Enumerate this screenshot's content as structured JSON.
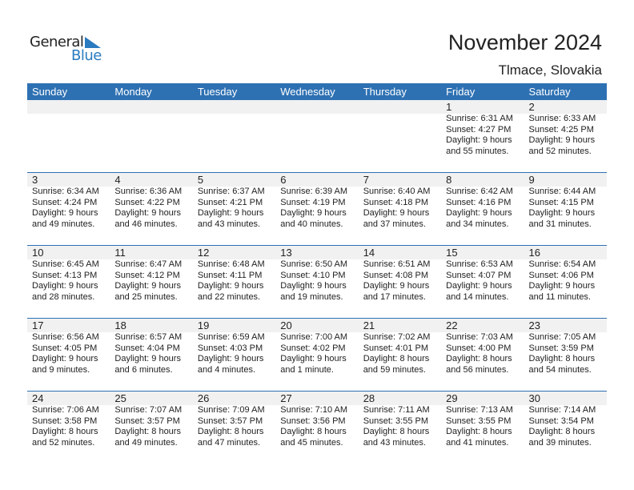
{
  "logo": {
    "text1": "General",
    "text2": "Blue"
  },
  "title": "November 2024",
  "location": "Tlmace, Slovakia",
  "colors": {
    "header": "#2e71b3",
    "band": "#f1f1f1",
    "logo_blue": "#2a7bc0"
  },
  "days": [
    "Sunday",
    "Monday",
    "Tuesday",
    "Wednesday",
    "Thursday",
    "Friday",
    "Saturday"
  ],
  "weeks": [
    [
      null,
      null,
      null,
      null,
      null,
      {
        "day": "1",
        "sunrise": "Sunrise: 6:31 AM",
        "sunset": "Sunset: 4:27 PM",
        "daylight1": "Daylight: 9 hours",
        "daylight2": "and 55 minutes."
      },
      {
        "day": "2",
        "sunrise": "Sunrise: 6:33 AM",
        "sunset": "Sunset: 4:25 PM",
        "daylight1": "Daylight: 9 hours",
        "daylight2": "and 52 minutes."
      }
    ],
    [
      {
        "day": "3",
        "sunrise": "Sunrise: 6:34 AM",
        "sunset": "Sunset: 4:24 PM",
        "daylight1": "Daylight: 9 hours",
        "daylight2": "and 49 minutes."
      },
      {
        "day": "4",
        "sunrise": "Sunrise: 6:36 AM",
        "sunset": "Sunset: 4:22 PM",
        "daylight1": "Daylight: 9 hours",
        "daylight2": "and 46 minutes."
      },
      {
        "day": "5",
        "sunrise": "Sunrise: 6:37 AM",
        "sunset": "Sunset: 4:21 PM",
        "daylight1": "Daylight: 9 hours",
        "daylight2": "and 43 minutes."
      },
      {
        "day": "6",
        "sunrise": "Sunrise: 6:39 AM",
        "sunset": "Sunset: 4:19 PM",
        "daylight1": "Daylight: 9 hours",
        "daylight2": "and 40 minutes."
      },
      {
        "day": "7",
        "sunrise": "Sunrise: 6:40 AM",
        "sunset": "Sunset: 4:18 PM",
        "daylight1": "Daylight: 9 hours",
        "daylight2": "and 37 minutes."
      },
      {
        "day": "8",
        "sunrise": "Sunrise: 6:42 AM",
        "sunset": "Sunset: 4:16 PM",
        "daylight1": "Daylight: 9 hours",
        "daylight2": "and 34 minutes."
      },
      {
        "day": "9",
        "sunrise": "Sunrise: 6:44 AM",
        "sunset": "Sunset: 4:15 PM",
        "daylight1": "Daylight: 9 hours",
        "daylight2": "and 31 minutes."
      }
    ],
    [
      {
        "day": "10",
        "sunrise": "Sunrise: 6:45 AM",
        "sunset": "Sunset: 4:13 PM",
        "daylight1": "Daylight: 9 hours",
        "daylight2": "and 28 minutes."
      },
      {
        "day": "11",
        "sunrise": "Sunrise: 6:47 AM",
        "sunset": "Sunset: 4:12 PM",
        "daylight1": "Daylight: 9 hours",
        "daylight2": "and 25 minutes."
      },
      {
        "day": "12",
        "sunrise": "Sunrise: 6:48 AM",
        "sunset": "Sunset: 4:11 PM",
        "daylight1": "Daylight: 9 hours",
        "daylight2": "and 22 minutes."
      },
      {
        "day": "13",
        "sunrise": "Sunrise: 6:50 AM",
        "sunset": "Sunset: 4:10 PM",
        "daylight1": "Daylight: 9 hours",
        "daylight2": "and 19 minutes."
      },
      {
        "day": "14",
        "sunrise": "Sunrise: 6:51 AM",
        "sunset": "Sunset: 4:08 PM",
        "daylight1": "Daylight: 9 hours",
        "daylight2": "and 17 minutes."
      },
      {
        "day": "15",
        "sunrise": "Sunrise: 6:53 AM",
        "sunset": "Sunset: 4:07 PM",
        "daylight1": "Daylight: 9 hours",
        "daylight2": "and 14 minutes."
      },
      {
        "day": "16",
        "sunrise": "Sunrise: 6:54 AM",
        "sunset": "Sunset: 4:06 PM",
        "daylight1": "Daylight: 9 hours",
        "daylight2": "and 11 minutes."
      }
    ],
    [
      {
        "day": "17",
        "sunrise": "Sunrise: 6:56 AM",
        "sunset": "Sunset: 4:05 PM",
        "daylight1": "Daylight: 9 hours",
        "daylight2": "and 9 minutes."
      },
      {
        "day": "18",
        "sunrise": "Sunrise: 6:57 AM",
        "sunset": "Sunset: 4:04 PM",
        "daylight1": "Daylight: 9 hours",
        "daylight2": "and 6 minutes."
      },
      {
        "day": "19",
        "sunrise": "Sunrise: 6:59 AM",
        "sunset": "Sunset: 4:03 PM",
        "daylight1": "Daylight: 9 hours",
        "daylight2": "and 4 minutes."
      },
      {
        "day": "20",
        "sunrise": "Sunrise: 7:00 AM",
        "sunset": "Sunset: 4:02 PM",
        "daylight1": "Daylight: 9 hours",
        "daylight2": "and 1 minute."
      },
      {
        "day": "21",
        "sunrise": "Sunrise: 7:02 AM",
        "sunset": "Sunset: 4:01 PM",
        "daylight1": "Daylight: 8 hours",
        "daylight2": "and 59 minutes."
      },
      {
        "day": "22",
        "sunrise": "Sunrise: 7:03 AM",
        "sunset": "Sunset: 4:00 PM",
        "daylight1": "Daylight: 8 hours",
        "daylight2": "and 56 minutes."
      },
      {
        "day": "23",
        "sunrise": "Sunrise: 7:05 AM",
        "sunset": "Sunset: 3:59 PM",
        "daylight1": "Daylight: 8 hours",
        "daylight2": "and 54 minutes."
      }
    ],
    [
      {
        "day": "24",
        "sunrise": "Sunrise: 7:06 AM",
        "sunset": "Sunset: 3:58 PM",
        "daylight1": "Daylight: 8 hours",
        "daylight2": "and 52 minutes."
      },
      {
        "day": "25",
        "sunrise": "Sunrise: 7:07 AM",
        "sunset": "Sunset: 3:57 PM",
        "daylight1": "Daylight: 8 hours",
        "daylight2": "and 49 minutes."
      },
      {
        "day": "26",
        "sunrise": "Sunrise: 7:09 AM",
        "sunset": "Sunset: 3:57 PM",
        "daylight1": "Daylight: 8 hours",
        "daylight2": "and 47 minutes."
      },
      {
        "day": "27",
        "sunrise": "Sunrise: 7:10 AM",
        "sunset": "Sunset: 3:56 PM",
        "daylight1": "Daylight: 8 hours",
        "daylight2": "and 45 minutes."
      },
      {
        "day": "28",
        "sunrise": "Sunrise: 7:11 AM",
        "sunset": "Sunset: 3:55 PM",
        "daylight1": "Daylight: 8 hours",
        "daylight2": "and 43 minutes."
      },
      {
        "day": "29",
        "sunrise": "Sunrise: 7:13 AM",
        "sunset": "Sunset: 3:55 PM",
        "daylight1": "Daylight: 8 hours",
        "daylight2": "and 41 minutes."
      },
      {
        "day": "30",
        "sunrise": "Sunrise: 7:14 AM",
        "sunset": "Sunset: 3:54 PM",
        "daylight1": "Daylight: 8 hours",
        "daylight2": "and 39 minutes."
      }
    ]
  ]
}
